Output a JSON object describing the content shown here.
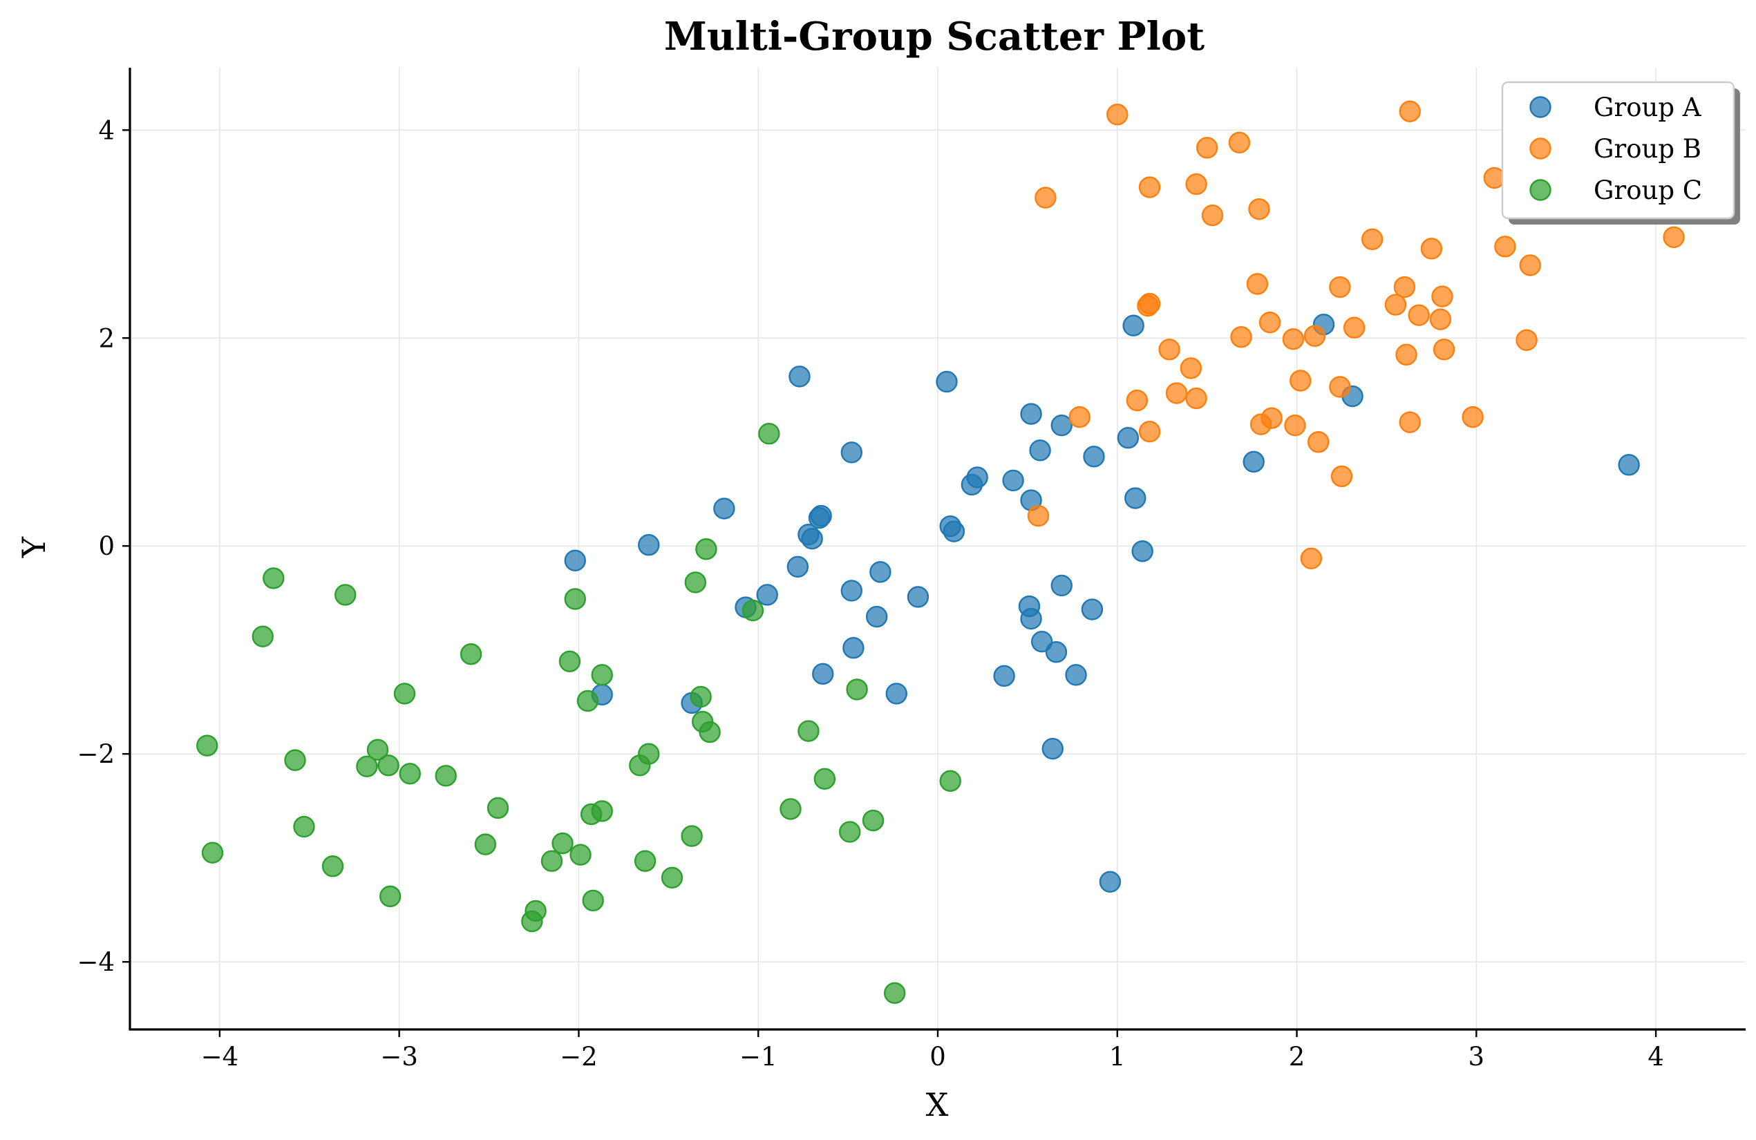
{
  "chart_data": {
    "type": "scatter",
    "title": "Multi-Group Scatter Plot",
    "xlabel": "X",
    "ylabel": "Y",
    "xlim": [
      -4.5,
      4.5
    ],
    "ylim": [
      -4.65,
      4.6
    ],
    "xticks": [
      -4,
      -3,
      -2,
      -1,
      0,
      1,
      2,
      3,
      4
    ],
    "yticks": [
      -4,
      -2,
      0,
      2,
      4
    ],
    "grid": true,
    "legend_position": "top-right",
    "series": [
      {
        "name": "Group A",
        "color": "#1f77b4",
        "points": [
          [
            -0.77,
            1.63
          ],
          [
            0.05,
            1.58
          ],
          [
            -2.02,
            -0.14
          ],
          [
            -1.61,
            0.01
          ],
          [
            -1.19,
            0.36
          ],
          [
            -0.48,
            0.9
          ],
          [
            -0.65,
            0.29
          ],
          [
            -0.66,
            0.27
          ],
          [
            -0.72,
            0.11
          ],
          [
            -0.7,
            0.07
          ],
          [
            -0.78,
            -0.2
          ],
          [
            -0.95,
            -0.47
          ],
          [
            -1.07,
            -0.59
          ],
          [
            -0.48,
            -0.43
          ],
          [
            -0.32,
            -0.25
          ],
          [
            -0.34,
            -0.68
          ],
          [
            -0.11,
            -0.49
          ],
          [
            -0.47,
            -0.98
          ],
          [
            -0.64,
            -1.23
          ],
          [
            -0.23,
            -1.42
          ],
          [
            -1.87,
            -1.43
          ],
          [
            -1.37,
            -1.51
          ],
          [
            0.07,
            0.19
          ],
          [
            0.09,
            0.14
          ],
          [
            0.19,
            0.59
          ],
          [
            0.22,
            0.66
          ],
          [
            0.42,
            0.63
          ],
          [
            0.52,
            0.44
          ],
          [
            0.52,
            1.27
          ],
          [
            0.57,
            0.92
          ],
          [
            0.69,
            1.16
          ],
          [
            0.87,
            0.86
          ],
          [
            0.51,
            -0.58
          ],
          [
            0.52,
            -0.7
          ],
          [
            0.58,
            -0.92
          ],
          [
            0.66,
            -1.02
          ],
          [
            0.69,
            -0.38
          ],
          [
            0.86,
            -0.61
          ],
          [
            0.77,
            -1.24
          ],
          [
            0.37,
            -1.25
          ],
          [
            0.64,
            -1.95
          ],
          [
            0.96,
            -3.23
          ],
          [
            1.06,
            1.04
          ],
          [
            1.09,
            2.12
          ],
          [
            1.1,
            0.46
          ],
          [
            1.14,
            -0.05
          ],
          [
            1.76,
            0.81
          ],
          [
            2.15,
            2.13
          ],
          [
            2.31,
            1.44
          ],
          [
            3.85,
            0.78
          ]
        ]
      },
      {
        "name": "Group B",
        "color": "#ff7f0e",
        "points": [
          [
            1.0,
            4.15
          ],
          [
            0.6,
            3.35
          ],
          [
            1.18,
            3.45
          ],
          [
            1.44,
            3.48
          ],
          [
            1.5,
            3.83
          ],
          [
            1.68,
            3.88
          ],
          [
            1.53,
            3.18
          ],
          [
            1.79,
            3.24
          ],
          [
            2.63,
            4.18
          ],
          [
            3.1,
            3.54
          ],
          [
            3.16,
            2.88
          ],
          [
            3.3,
            2.7
          ],
          [
            4.1,
            2.97
          ],
          [
            2.42,
            2.95
          ],
          [
            2.75,
            2.86
          ],
          [
            1.78,
            2.52
          ],
          [
            2.24,
            2.49
          ],
          [
            2.6,
            2.49
          ],
          [
            2.55,
            2.32
          ],
          [
            2.68,
            2.22
          ],
          [
            2.81,
            2.4
          ],
          [
            2.8,
            2.18
          ],
          [
            1.18,
            2.33
          ],
          [
            1.17,
            2.31
          ],
          [
            1.29,
            1.89
          ],
          [
            1.69,
            2.01
          ],
          [
            1.85,
            2.15
          ],
          [
            1.98,
            1.99
          ],
          [
            2.1,
            2.02
          ],
          [
            2.32,
            2.1
          ],
          [
            2.61,
            1.84
          ],
          [
            2.82,
            1.89
          ],
          [
            3.28,
            1.98
          ],
          [
            1.41,
            1.71
          ],
          [
            1.33,
            1.47
          ],
          [
            1.44,
            1.42
          ],
          [
            1.11,
            1.4
          ],
          [
            2.02,
            1.59
          ],
          [
            2.24,
            1.53
          ],
          [
            0.79,
            1.24
          ],
          [
            1.18,
            1.1
          ],
          [
            1.8,
            1.17
          ],
          [
            1.86,
            1.23
          ],
          [
            1.99,
            1.16
          ],
          [
            2.12,
            1.0
          ],
          [
            2.63,
            1.19
          ],
          [
            2.98,
            1.24
          ],
          [
            2.25,
            0.67
          ],
          [
            0.56,
            0.29
          ],
          [
            2.08,
            -0.12
          ]
        ]
      },
      {
        "name": "Group C",
        "color": "#2ca02c",
        "points": [
          [
            -0.94,
            1.08
          ],
          [
            -3.7,
            -0.31
          ],
          [
            -3.3,
            -0.47
          ],
          [
            -3.76,
            -0.87
          ],
          [
            -2.02,
            -0.51
          ],
          [
            -1.35,
            -0.35
          ],
          [
            -1.29,
            -0.03
          ],
          [
            -1.03,
            -0.62
          ],
          [
            -2.6,
            -1.04
          ],
          [
            -2.05,
            -1.11
          ],
          [
            -1.87,
            -1.24
          ],
          [
            -2.97,
            -1.42
          ],
          [
            -1.95,
            -1.49
          ],
          [
            -1.32,
            -1.45
          ],
          [
            -1.31,
            -1.69
          ],
          [
            -1.27,
            -1.79
          ],
          [
            -0.45,
            -1.38
          ],
          [
            -0.72,
            -1.78
          ],
          [
            -4.07,
            -1.92
          ],
          [
            -3.58,
            -2.06
          ],
          [
            -3.12,
            -1.96
          ],
          [
            -3.18,
            -2.12
          ],
          [
            -3.06,
            -2.11
          ],
          [
            -2.94,
            -2.19
          ],
          [
            -2.74,
            -2.21
          ],
          [
            -1.61,
            -2.0
          ],
          [
            -1.66,
            -2.11
          ],
          [
            -0.63,
            -2.24
          ],
          [
            0.07,
            -2.26
          ],
          [
            -3.53,
            -2.7
          ],
          [
            -2.45,
            -2.52
          ],
          [
            -1.87,
            -2.55
          ],
          [
            -1.93,
            -2.58
          ],
          [
            -0.82,
            -2.53
          ],
          [
            -2.52,
            -2.87
          ],
          [
            -2.09,
            -2.86
          ],
          [
            -1.99,
            -2.97
          ],
          [
            -1.37,
            -2.79
          ],
          [
            -0.49,
            -2.75
          ],
          [
            -0.36,
            -2.64
          ],
          [
            -4.04,
            -2.95
          ],
          [
            -3.37,
            -3.08
          ],
          [
            -2.15,
            -3.03
          ],
          [
            -1.63,
            -3.03
          ],
          [
            -1.48,
            -3.19
          ],
          [
            -3.05,
            -3.37
          ],
          [
            -1.92,
            -3.41
          ],
          [
            -2.24,
            -3.51
          ],
          [
            -2.26,
            -3.61
          ],
          [
            -0.24,
            -4.3
          ]
        ]
      }
    ]
  }
}
